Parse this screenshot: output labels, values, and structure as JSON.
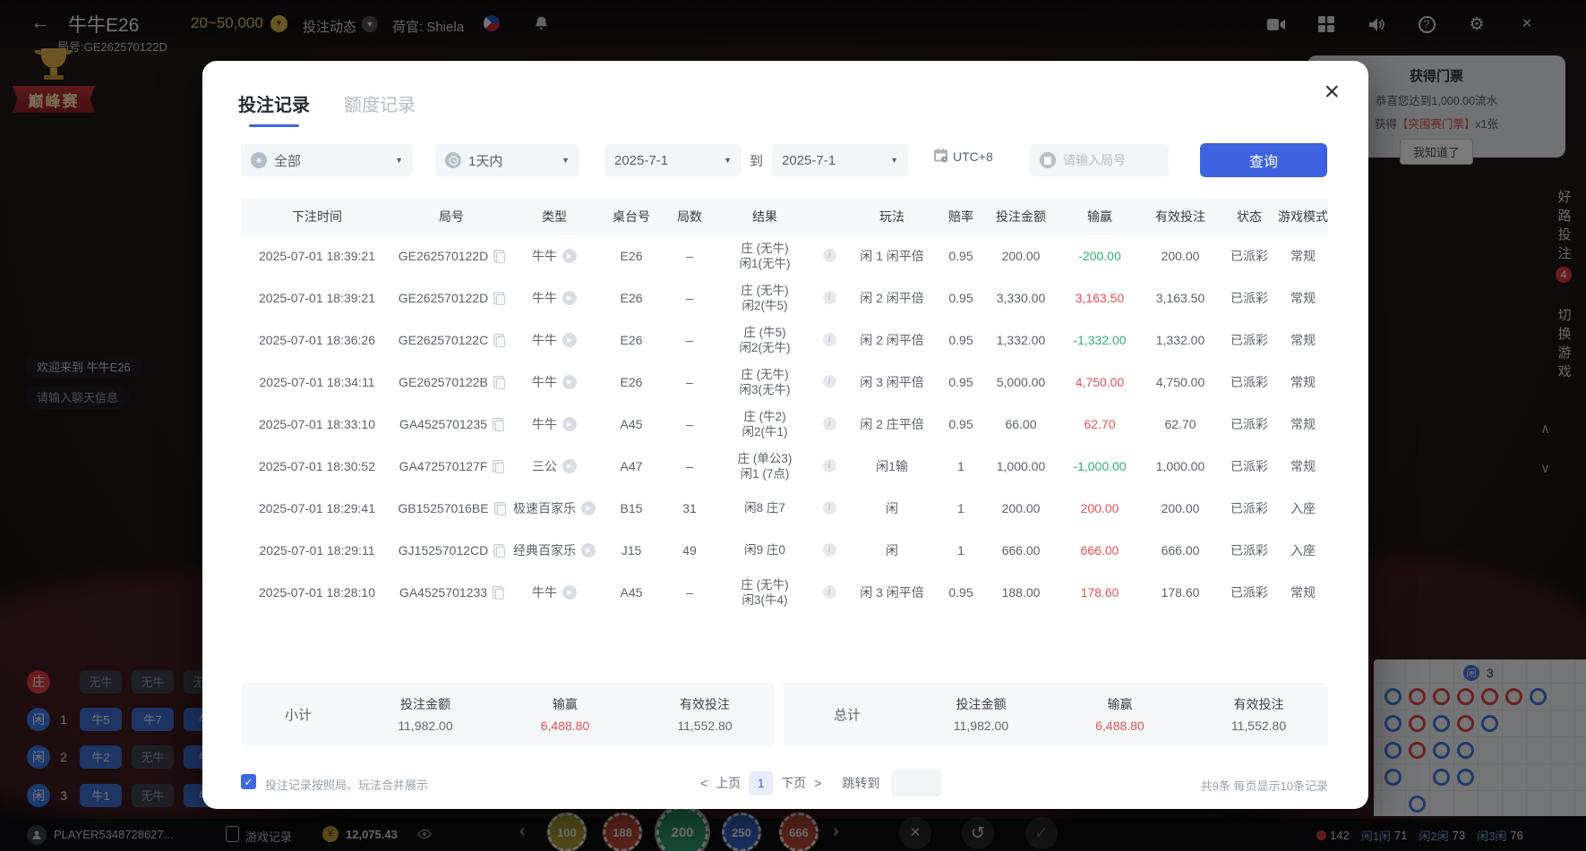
{
  "background": {
    "topbar": {
      "title": "牛牛E26",
      "round_label": "局号:GE262570122D",
      "limit": "20~50,000",
      "bet_trend_label": "投注动态",
      "dealer_label": "荷官: Shiela",
      "logo_text": "巅峰赛"
    },
    "ticket_panel": {
      "title": "获得门票",
      "line1": "恭喜您达到1,000.00流水",
      "line2_prefix": "获得",
      "line2_highlight": "【突围赛门票】",
      "line2_suffix": "x1张",
      "button": "我知道了"
    },
    "right_rail": {
      "good_road": "好路投注",
      "badge": "4",
      "switch_game": "切换游戏"
    },
    "chat": {
      "welcome": "欢迎来到 牛牛E26",
      "input_placeholder": "请输入聊天信息"
    },
    "bet_board": {
      "rows": [
        {
          "side": "庄",
          "num": "",
          "side_color": "#e04040",
          "cells": [
            {
              "text": "无牛",
              "style": "gray"
            },
            {
              "text": "无牛",
              "style": "gray"
            },
            {
              "text": "无牛",
              "style": "gray"
            }
          ]
        },
        {
          "side": "闲",
          "num": "1",
          "side_color": "#3b79e8",
          "cells": [
            {
              "text": "牛5",
              "style": "blue"
            },
            {
              "text": "牛7",
              "style": "blue"
            },
            {
              "text": "牛",
              "style": "blue"
            }
          ]
        },
        {
          "side": "闲",
          "num": "2",
          "side_color": "#3b79e8",
          "cells": [
            {
              "text": "牛2",
              "style": "blue"
            },
            {
              "text": "无牛",
              "style": "gray"
            },
            {
              "text": "牛",
              "style": "blue"
            }
          ]
        },
        {
          "side": "闲",
          "num": "3",
          "side_color": "#3b79e8",
          "cells": [
            {
              "text": "牛1",
              "style": "blue"
            },
            {
              "text": "无牛",
              "style": "gray"
            },
            {
              "text": "牛",
              "style": "blue"
            }
          ]
        }
      ]
    },
    "bottombar": {
      "player_name": "PLAYER5348728627...",
      "game_record": "游戏记录",
      "balance": "12,075.43",
      "chips": [
        {
          "value": "100",
          "color": "#b5a23c",
          "selected": false
        },
        {
          "value": "188",
          "color": "#c14b38",
          "selected": false
        },
        {
          "value": "200",
          "color": "#2f9e6e",
          "selected": true
        },
        {
          "value": "250",
          "color": "#3a66c8",
          "selected": false
        },
        {
          "value": "666",
          "color": "#c14b38",
          "selected": false
        }
      ],
      "stats": [
        {
          "dot": "#e04343",
          "label": "",
          "value": "142"
        },
        {
          "dot": "",
          "label": "闲1闲",
          "value": "71"
        },
        {
          "dot": "",
          "label": "闲2闲",
          "value": "73"
        },
        {
          "dot": "",
          "label": "闲3闲",
          "value": "76"
        }
      ]
    },
    "roadmap": {
      "header_side": "闲",
      "header_value": "3",
      "columns": [
        [
          "P",
          "P",
          "P",
          "P",
          ""
        ],
        [
          "B",
          "B",
          "B",
          "",
          "P"
        ],
        [
          "B",
          "P",
          "P",
          "P",
          ""
        ],
        [
          "B",
          "B",
          "P",
          "P",
          ""
        ],
        [
          "B",
          "P",
          "",
          "",
          ""
        ],
        [
          "B",
          "",
          "",
          "",
          ""
        ],
        [
          "P",
          "",
          "",
          "",
          ""
        ]
      ]
    }
  },
  "modal": {
    "tabs": [
      {
        "label": "投注记录",
        "active": true
      },
      {
        "label": "额度记录",
        "active": false
      }
    ],
    "filters": {
      "category": "全部",
      "period": "1天内",
      "date_from": "2025-7-1",
      "to_label": "到",
      "date_to": "2025-7-1",
      "timezone": "UTC+8",
      "search_placeholder": "请输入局号",
      "query_button": "查询"
    },
    "table": {
      "headers": [
        "下注时间",
        "局号",
        "类型",
        "桌台号",
        "局数",
        "结果",
        "",
        "玩法",
        "赔率",
        "投注金额",
        "输赢",
        "有效投注",
        "状态",
        "游戏模式"
      ],
      "rows": [
        {
          "time": "2025-07-01 18:39:21",
          "round_id": "GE262570122D",
          "type": "牛牛",
          "table_id": "E26",
          "rounds": "–",
          "result_line1": "庄 (无牛)",
          "result_line2": "闲1(无牛)",
          "play": "闲 1 闲平倍",
          "odds": "0.95",
          "bet": "200.00",
          "win": "-200.00",
          "win_sign": "loss",
          "valid": "200.00",
          "status": "已派彩",
          "mode": "常规"
        },
        {
          "time": "2025-07-01 18:39:21",
          "round_id": "GE262570122D",
          "type": "牛牛",
          "table_id": "E26",
          "rounds": "–",
          "result_line1": "庄 (无牛)",
          "result_line2": "闲2(牛5)",
          "play": "闲 2 闲平倍",
          "odds": "0.95",
          "bet": "3,330.00",
          "win": "3,163.50",
          "win_sign": "win",
          "valid": "3,163.50",
          "status": "已派彩",
          "mode": "常规"
        },
        {
          "time": "2025-07-01 18:36:26",
          "round_id": "GE262570122C",
          "type": "牛牛",
          "table_id": "E26",
          "rounds": "–",
          "result_line1": "庄 (牛5)",
          "result_line2": "闲2(无牛)",
          "play": "闲 2 闲平倍",
          "odds": "0.95",
          "bet": "1,332.00",
          "win": "-1,332.00",
          "win_sign": "loss",
          "valid": "1,332.00",
          "status": "已派彩",
          "mode": "常规"
        },
        {
          "time": "2025-07-01 18:34:11",
          "round_id": "GE262570122B",
          "type": "牛牛",
          "table_id": "E26",
          "rounds": "–",
          "result_line1": "庄 (无牛)",
          "result_line2": "闲3(无牛)",
          "play": "闲 3 闲平倍",
          "odds": "0.95",
          "bet": "5,000.00",
          "win": "4,750.00",
          "win_sign": "win",
          "valid": "4,750.00",
          "status": "已派彩",
          "mode": "常规"
        },
        {
          "time": "2025-07-01 18:33:10",
          "round_id": "GA4525701235",
          "type": "牛牛",
          "table_id": "A45",
          "rounds": "–",
          "result_line1": "庄 (牛2)",
          "result_line2": "闲2(牛1)",
          "play": "闲 2 庄平倍",
          "odds": "0.95",
          "bet": "66.00",
          "win": "62.70",
          "win_sign": "win",
          "valid": "62.70",
          "status": "已派彩",
          "mode": "常规"
        },
        {
          "time": "2025-07-01 18:30:52",
          "round_id": "GA472570127F",
          "type": "三公",
          "table_id": "A47",
          "rounds": "–",
          "result_line1": "庄 (单公3)",
          "result_line2": "闲1 (7点)",
          "play": "闲1输",
          "odds": "1",
          "bet": "1,000.00",
          "win": "-1,000.00",
          "win_sign": "loss",
          "valid": "1,000.00",
          "status": "已派彩",
          "mode": "常规"
        },
        {
          "time": "2025-07-01 18:29:41",
          "round_id": "GB15257016BE",
          "type": "极速百家乐",
          "table_id": "B15",
          "rounds": "31",
          "result_line1": "闲8 庄7",
          "result_line2": "",
          "play": "闲",
          "odds": "1",
          "bet": "200.00",
          "win": "200.00",
          "win_sign": "win",
          "valid": "200.00",
          "status": "已派彩",
          "mode": "入座"
        },
        {
          "time": "2025-07-01 18:29:11",
          "round_id": "GJ15257012CD",
          "type": "经典百家乐",
          "table_id": "J15",
          "rounds": "49",
          "result_line1": "闲9 庄0",
          "result_line2": "",
          "play": "闲",
          "odds": "1",
          "bet": "666.00",
          "win": "666.00",
          "win_sign": "win",
          "valid": "666.00",
          "status": "已派彩",
          "mode": "入座"
        },
        {
          "time": "2025-07-01 18:28:10",
          "round_id": "GA4525701233",
          "type": "牛牛",
          "table_id": "A45",
          "rounds": "–",
          "result_line1": "庄 (无牛)",
          "result_line2": "闲3(牛4)",
          "play": "闲 3 闲平倍",
          "odds": "0.95",
          "bet": "188.00",
          "win": "178.60",
          "win_sign": "win",
          "valid": "178.60",
          "status": "已派彩",
          "mode": "常规"
        }
      ]
    },
    "summary": {
      "subtotal_label": "小计",
      "total_label": "总计",
      "col_bet": "投注金额",
      "col_win": "输赢",
      "col_valid": "有效投注",
      "subtotal": {
        "bet": "11,982.00",
        "win": "6,488.80",
        "valid": "11,552.80"
      },
      "total": {
        "bet": "11,982.00",
        "win": "6,488.80",
        "valid": "11,552.80"
      }
    },
    "footer": {
      "merge_checkbox_label": "投注记录按照局、玩法合并展示",
      "checked": true,
      "prev_arrow": "<",
      "prev_label": "上页",
      "page": "1",
      "next_label": "下页",
      "next_arrow": ">",
      "jump_label": "跳转到",
      "total_info": "共9条 每页显示10条记录"
    }
  }
}
